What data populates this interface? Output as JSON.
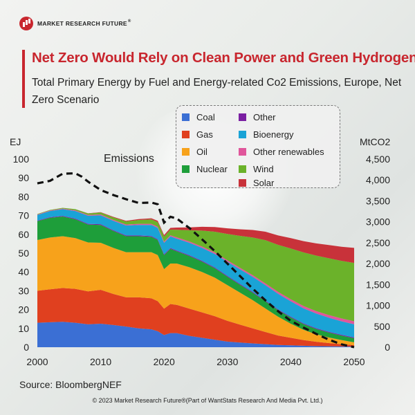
{
  "logo": {
    "text": "MARKET RESEARCH FUTURE",
    "reg": "®"
  },
  "title": "Net Zero Would Rely on Clean Power and Green Hydrogen",
  "subtitle": "Total Primary Energy by Fuel and Energy-related Co2 Emissions, Europe, Net Zero Scenario",
  "source": "Source: BloombergNEF",
  "copyright": "© 2023 Market Research Future®(Part of WantStats Research And Media Pvt. Ltd.)",
  "colors": {
    "coal": "#3b6fd4",
    "gas": "#e0401f",
    "oil": "#f7a21b",
    "nuclear": "#1e9e3a",
    "other": "#7b1fa2",
    "bioenergy": "#1aa3d6",
    "other_renewables": "#e0569b",
    "wind": "#6bb22a",
    "solar": "#c8323a"
  },
  "chart_data": {
    "type": "area",
    "xlabel": "",
    "ylabel": "EJ",
    "y2label": "MtCO2",
    "ylim": [
      0,
      100
    ],
    "y2lim": [
      0,
      4500
    ],
    "xlim": [
      2000,
      2050
    ],
    "xticks": [
      "2000",
      "2010",
      "2020",
      "2030",
      "2040",
      "2050"
    ],
    "yticks": [
      "0",
      "10",
      "20",
      "30",
      "40",
      "50",
      "60",
      "70",
      "80",
      "90",
      "100"
    ],
    "y2ticks": [
      "0",
      "500",
      "1,000",
      "1,500",
      "2,000",
      "2,500",
      "3,000",
      "3,500",
      "4,000",
      "4,500"
    ],
    "x": [
      2000,
      2002,
      2004,
      2006,
      2008,
      2010,
      2012,
      2014,
      2016,
      2018,
      2019,
      2020,
      2021,
      2022,
      2024,
      2026,
      2028,
      2030,
      2032,
      2034,
      2036,
      2038,
      2040,
      2042,
      2044,
      2046,
      2048,
      2050
    ],
    "series": [
      {
        "name": "Coal",
        "key": "coal",
        "values": [
          13,
          13.3,
          13.5,
          13,
          12.2,
          12.5,
          11.8,
          11,
          10,
          9.5,
          8.5,
          6.5,
          7.5,
          7.5,
          6,
          5,
          4,
          3,
          2.5,
          2,
          1.6,
          1.2,
          1,
          0.8,
          0.6,
          0.5,
          0.4,
          0.3
        ]
      },
      {
        "name": "Gas",
        "key": "gas",
        "values": [
          17,
          17.5,
          18,
          18,
          17.5,
          18,
          16.5,
          15.5,
          16.5,
          16.5,
          16,
          14,
          15.5,
          15,
          14.5,
          13.5,
          12.5,
          11,
          9.5,
          8,
          6.5,
          5,
          4,
          3,
          2.3,
          1.7,
          1.2,
          0.8
        ]
      },
      {
        "name": "Oil",
        "key": "oil",
        "values": [
          27,
          27.5,
          27.5,
          27,
          26,
          25,
          24.5,
          24,
          24,
          24.5,
          24.5,
          21,
          21.5,
          22,
          22,
          21.5,
          20.5,
          19,
          17,
          15,
          12.5,
          10,
          7.5,
          5.5,
          4,
          3,
          2.2,
          1.5
        ]
      },
      {
        "name": "Nuclear",
        "key": "nuclear",
        "values": [
          10,
          10.5,
          10.5,
          10,
          9.5,
          9.5,
          9,
          8.5,
          8.5,
          8.2,
          8,
          7.5,
          7.8,
          6.5,
          6,
          5.5,
          5,
          4.5,
          4.2,
          4,
          3.8,
          3.5,
          3.3,
          3,
          2.8,
          2.6,
          2.4,
          2.2
        ]
      },
      {
        "name": "Other",
        "key": "other",
        "values": [
          0.3,
          0.3,
          0.3,
          0.4,
          0.4,
          0.4,
          0.4,
          0.4,
          0.4,
          0.4,
          0.4,
          0.4,
          0.4,
          0.4,
          0.4,
          0.4,
          0.4,
          0.4,
          0.4,
          0.4,
          0.4,
          0.4,
          0.4,
          0.4,
          0.4,
          0.4,
          0.4,
          0.4
        ]
      },
      {
        "name": "Bioenergy",
        "key": "bioenergy",
        "values": [
          3,
          3.3,
          3.6,
          4,
          4.3,
          4.7,
          5,
          5.3,
          5.6,
          5.9,
          6,
          6.1,
          6.2,
          6.3,
          6.6,
          6.9,
          7.2,
          7.5,
          7.8,
          8,
          8.2,
          8.3,
          8.2,
          8,
          7.8,
          7.5,
          7.2,
          7
        ]
      },
      {
        "name": "Other renewables",
        "key": "other_renewables",
        "values": [
          0.3,
          0.3,
          0.3,
          0.4,
          0.4,
          0.5,
          0.5,
          0.5,
          0.6,
          0.6,
          0.6,
          0.6,
          0.6,
          0.7,
          0.7,
          0.7,
          0.8,
          0.8,
          0.8,
          0.9,
          0.9,
          1,
          1.1,
          1.2,
          1.3,
          1.4,
          1.5,
          1.6
        ]
      },
      {
        "name": "Wind",
        "key": "wind",
        "values": [
          0.2,
          0.3,
          0.4,
          0.6,
          0.8,
          1,
          1.3,
          1.6,
          2,
          2.3,
          2.5,
          2.7,
          3,
          4,
          6,
          8.5,
          11,
          14,
          17,
          20,
          23,
          25,
          27,
          28.5,
          29.5,
          30.2,
          30.6,
          31
        ]
      },
      {
        "name": "Solar",
        "key": "solar",
        "values": [
          0,
          0,
          0,
          0,
          0.1,
          0.2,
          0.3,
          0.4,
          0.5,
          0.6,
          0.7,
          0.8,
          0.9,
          1.2,
          1.5,
          2,
          2.5,
          3,
          3.5,
          4,
          4.5,
          5,
          5.5,
          6,
          6.5,
          7,
          7.5,
          8
        ]
      }
    ],
    "emissions": {
      "name": "Emissions",
      "x": [
        2000,
        2002,
        2004,
        2006,
        2007,
        2008,
        2010,
        2012,
        2014,
        2016,
        2018,
        2019,
        2020,
        2021,
        2022,
        2024,
        2026,
        2028,
        2030,
        2032,
        2034,
        2036,
        2038,
        2040,
        2042,
        2044,
        2046,
        2048,
        2050
      ],
      "values": [
        3920,
        3980,
        4150,
        4160,
        4080,
        3960,
        3760,
        3640,
        3540,
        3450,
        3460,
        3420,
        2980,
        3120,
        3080,
        2850,
        2580,
        2300,
        2000,
        1700,
        1400,
        1120,
        860,
        630,
        470,
        320,
        180,
        70,
        0
      ]
    },
    "annotations": [
      "Emissions"
    ],
    "legend_position": "top-right"
  }
}
